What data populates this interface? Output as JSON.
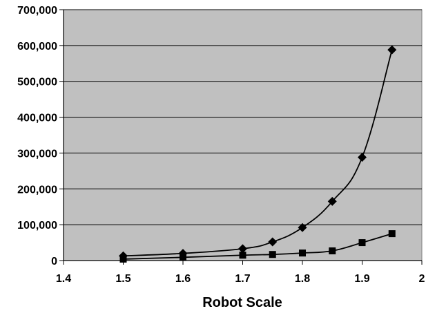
{
  "chart_data": {
    "type": "line",
    "title": "",
    "xlabel": "Robot Scale",
    "ylabel": "",
    "xlim": [
      1.4,
      2.0
    ],
    "ylim": [
      0,
      700000
    ],
    "x_ticks": [
      "1.4",
      "1.5",
      "1.6",
      "1.7",
      "1.8",
      "1.9",
      "2"
    ],
    "y_ticks": [
      "0",
      "100,000",
      "200,000",
      "300,000",
      "400,000",
      "500,000",
      "600,000",
      "700,000"
    ],
    "grid": true,
    "legend": "none",
    "plot_background": "#c0c0c0",
    "series": [
      {
        "marker": "diamond",
        "color": "#000000",
        "x": [
          1.5,
          1.6,
          1.7,
          1.75,
          1.8,
          1.85,
          1.9,
          1.95
        ],
        "y": [
          13000,
          20000,
          33000,
          52000,
          92000,
          165000,
          288000,
          588000
        ]
      },
      {
        "marker": "square",
        "color": "#000000",
        "x": [
          1.5,
          1.6,
          1.7,
          1.75,
          1.8,
          1.85,
          1.9,
          1.95
        ],
        "y": [
          4000,
          9000,
          15000,
          17000,
          21000,
          27000,
          50000,
          75000
        ]
      }
    ]
  }
}
